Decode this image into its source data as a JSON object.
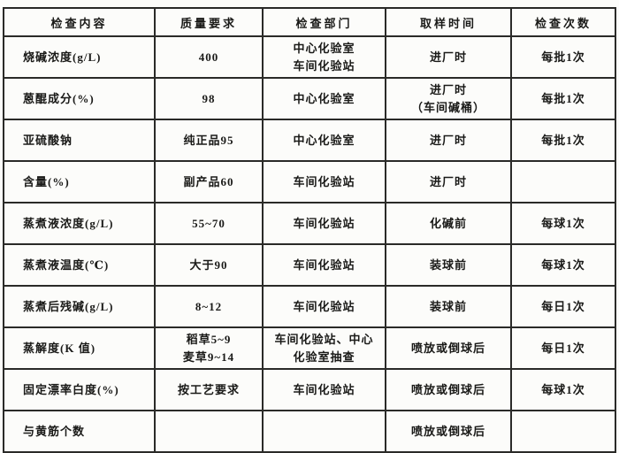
{
  "table": {
    "columns": [
      "检查内容",
      "质量要求",
      "检查部门",
      "取样时间",
      "检查次数"
    ],
    "field_names": [
      "content",
      "requirement",
      "department",
      "sampling-time",
      "frequency"
    ],
    "rows": [
      [
        "烧碱浓度(g/L)",
        "400",
        "中心化验室\n车间化验站",
        "进厂时",
        "每批1次"
      ],
      [
        "蒽醌成分(%)",
        "98",
        "中心化验室",
        "进厂时\n（车间碱桶）",
        "每批1次"
      ],
      [
        "亚硫酸钠",
        "纯正品95",
        "中心化验室",
        "进厂时",
        "每批1次"
      ],
      [
        "含量(%)",
        "副产品60",
        "车间化验站",
        "进厂时",
        ""
      ],
      [
        "蒸煮液浓度(g/L)",
        "55~70",
        "车间化验站",
        "化碱前",
        "每球1次"
      ],
      [
        "蒸煮液温度(℃)",
        "大于90",
        "车间化验站",
        "装球前",
        "每球1次"
      ],
      [
        "蒸煮后残碱(g/L)",
        "8~12",
        "车间化验站",
        "装球前",
        "每日1次"
      ],
      [
        "蒸解度(K 值)",
        "稻草5~9\n麦草9~14",
        "车间化验站、中心\n化验室抽查",
        "喷放或倒球后",
        "每日1次"
      ],
      [
        "固定漂率白度(%)",
        "按工艺要求",
        "车间化验站",
        "喷放或倒球后",
        "每球1次"
      ],
      [
        "与黄筋个数",
        "",
        "",
        "喷放或倒球后",
        ""
      ]
    ],
    "colors": {
      "border": "#2a2a28",
      "text": "#1a1a18",
      "paper": "#fcfcfa"
    }
  }
}
